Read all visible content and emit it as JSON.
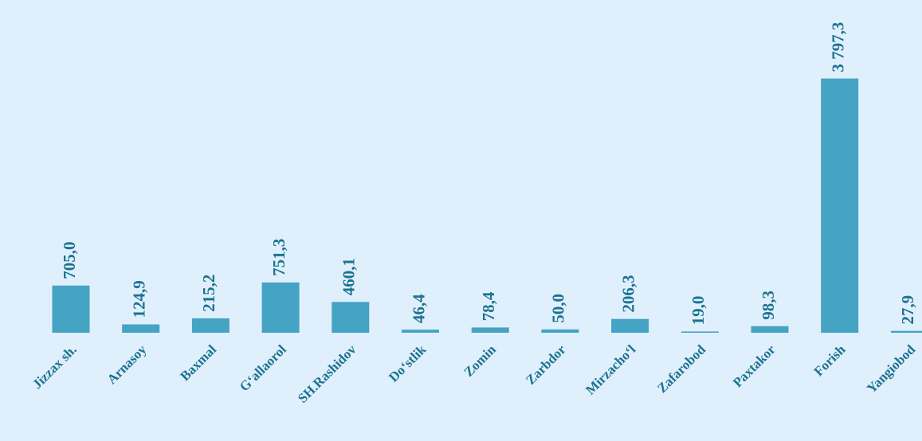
{
  "chart_data": {
    "type": "bar",
    "categories": [
      "Jizzax sh.",
      "Arnasoy",
      "Baxmal",
      "G‘allaorol",
      "SH.Rashidov",
      "Do‘stlik",
      "Zomin",
      "Zarbdor",
      "Mirzacho‘l",
      "Zafarobod",
      "Paxtakor",
      "Forish",
      "Yangiobod"
    ],
    "values": [
      705.0,
      124.9,
      215.2,
      751.3,
      460.1,
      46.4,
      78.4,
      50.0,
      206.3,
      19.0,
      98.3,
      3797.3,
      27.9
    ],
    "value_labels": [
      "705,0",
      "124,9",
      "215,2",
      "751,3",
      "460,1",
      "46,4",
      "78,4",
      "50,0",
      "206,3",
      "19,0",
      "98,3",
      "3 797,3",
      "27,9"
    ],
    "color": "#45a3c4",
    "ylim": [
      0,
      3900
    ]
  }
}
